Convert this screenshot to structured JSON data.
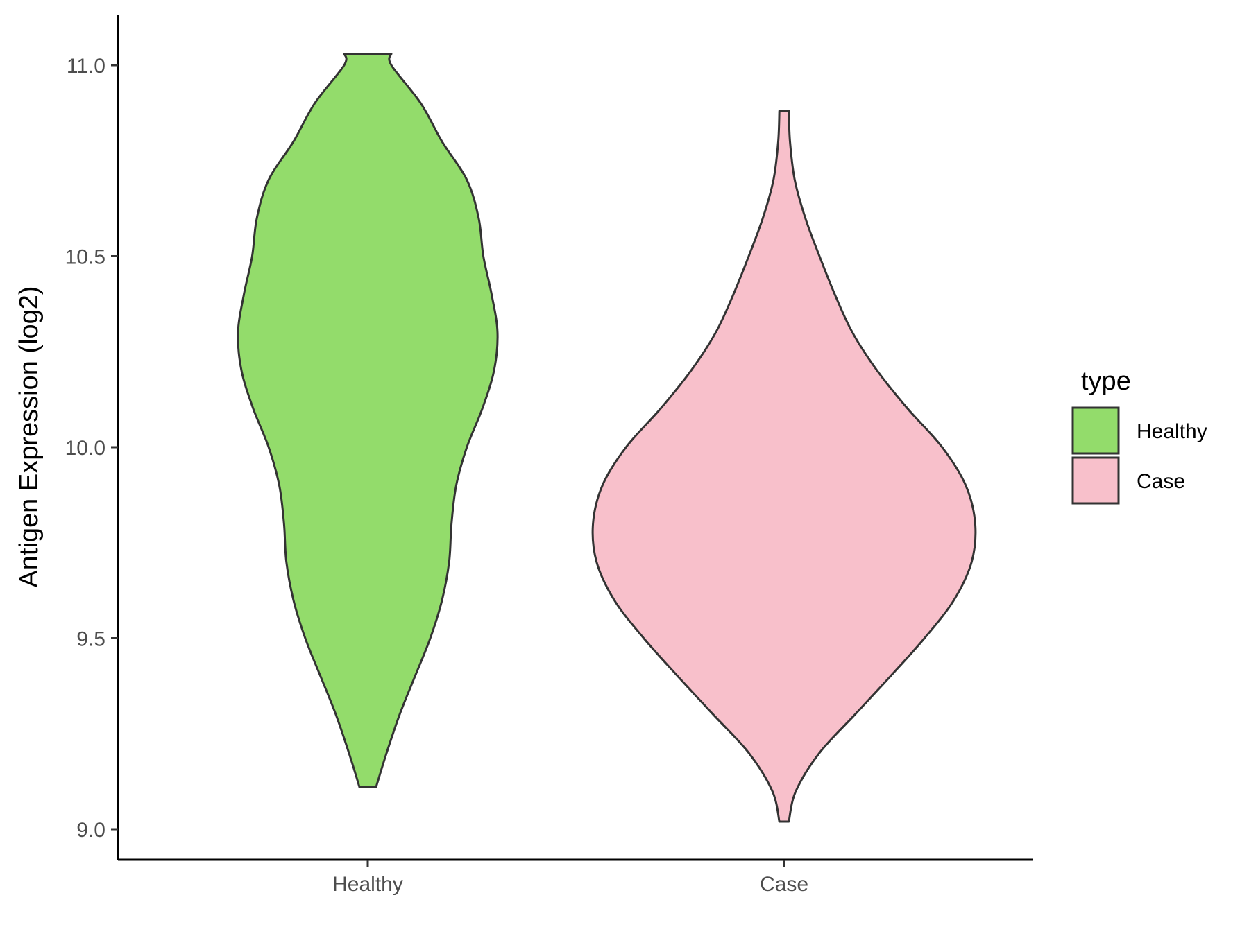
{
  "chart_data": {
    "type": "violin",
    "title": "",
    "xlabel": "",
    "ylabel": "Antigen Expression (log2)",
    "ylim": [
      8.92,
      11.13
    ],
    "yticks": [
      9.0,
      9.5,
      10.0,
      10.5,
      11.0
    ],
    "ytick_labels": [
      "9.0",
      "9.5",
      "10.0",
      "10.5",
      "11.0"
    ],
    "categories": [
      "Healthy",
      "Case"
    ],
    "grid": false,
    "legend": {
      "title": "type",
      "position": "right",
      "entries": [
        "Healthy",
        "Case"
      ]
    },
    "series": [
      {
        "name": "Healthy",
        "color": "#93DC6B",
        "min": 9.11,
        "max": 11.03,
        "density": [
          [
            9.11,
            0.07
          ],
          [
            9.2,
            0.16
          ],
          [
            9.3,
            0.27
          ],
          [
            9.4,
            0.4
          ],
          [
            9.5,
            0.53
          ],
          [
            9.6,
            0.63
          ],
          [
            9.7,
            0.69
          ],
          [
            9.8,
            0.71
          ],
          [
            9.9,
            0.75
          ],
          [
            10.0,
            0.84
          ],
          [
            10.1,
            0.97
          ],
          [
            10.2,
            1.07
          ],
          [
            10.3,
            1.1
          ],
          [
            10.4,
            1.05
          ],
          [
            10.5,
            0.98
          ],
          [
            10.6,
            0.94
          ],
          [
            10.7,
            0.84
          ],
          [
            10.8,
            0.63
          ],
          [
            10.9,
            0.45
          ],
          [
            11.0,
            0.2
          ],
          [
            11.03,
            0.2
          ]
        ]
      },
      {
        "name": "Case",
        "color": "#F8C0CB",
        "min": 9.02,
        "max": 10.88,
        "density": [
          [
            9.02,
            0.04
          ],
          [
            9.1,
            0.1
          ],
          [
            9.2,
            0.3
          ],
          [
            9.3,
            0.6
          ],
          [
            9.4,
            0.9
          ],
          [
            9.5,
            1.19
          ],
          [
            9.6,
            1.44
          ],
          [
            9.7,
            1.59
          ],
          [
            9.8,
            1.62
          ],
          [
            9.9,
            1.54
          ],
          [
            10.0,
            1.34
          ],
          [
            10.1,
            1.05
          ],
          [
            10.2,
            0.79
          ],
          [
            10.3,
            0.58
          ],
          [
            10.4,
            0.43
          ],
          [
            10.5,
            0.3
          ],
          [
            10.6,
            0.18
          ],
          [
            10.7,
            0.09
          ],
          [
            10.8,
            0.05
          ],
          [
            10.88,
            0.04
          ]
        ]
      }
    ]
  }
}
